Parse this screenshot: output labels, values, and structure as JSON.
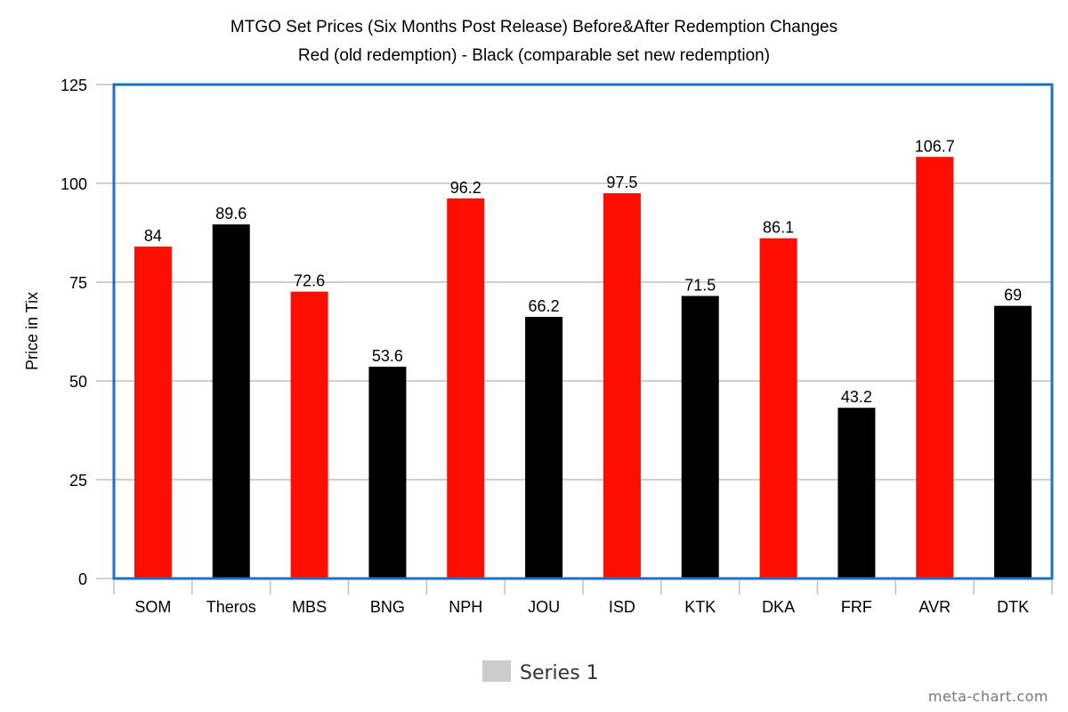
{
  "chart_data": {
    "type": "bar",
    "title": "MTGO Set Prices (Six Months Post Release) Before&After Redemption Changes",
    "subtitle": "Red (old redemption) - Black (comparable set new redemption)",
    "xlabel": "",
    "ylabel": "Price in Tix",
    "ylim": [
      0,
      125
    ],
    "yticks": [
      0,
      25,
      50,
      75,
      100,
      125
    ],
    "grid": true,
    "legend_position": "bottom",
    "categories": [
      "SOM",
      "Theros",
      "MBS",
      "BNG",
      "NPH",
      "JOU",
      "ISD",
      "KTK",
      "DKA",
      "FRF",
      "AVR",
      "DTK"
    ],
    "series": [
      {
        "name": "Series 1",
        "values": [
          84,
          89.6,
          72.6,
          53.6,
          96.2,
          66.2,
          97.5,
          71.5,
          86.1,
          43.2,
          106.7,
          69
        ],
        "data_labels": [
          "84",
          "89.6",
          "72.6",
          "53.6",
          "96.2",
          "66.2",
          "97.5",
          "71.5",
          "86.1",
          "43.2",
          "106.7",
          "69"
        ],
        "bar_colors": [
          "#ff0d00",
          "#000000",
          "#ff0d00",
          "#000000",
          "#ff0d00",
          "#000000",
          "#ff0d00",
          "#000000",
          "#ff0d00",
          "#000000",
          "#ff0d00",
          "#000000"
        ]
      }
    ],
    "legend_swatch_color": "#cccccc",
    "plot_border_color": "#1a72c4",
    "grid_color": "#bfbfbf"
  },
  "watermark": "meta-chart.com"
}
